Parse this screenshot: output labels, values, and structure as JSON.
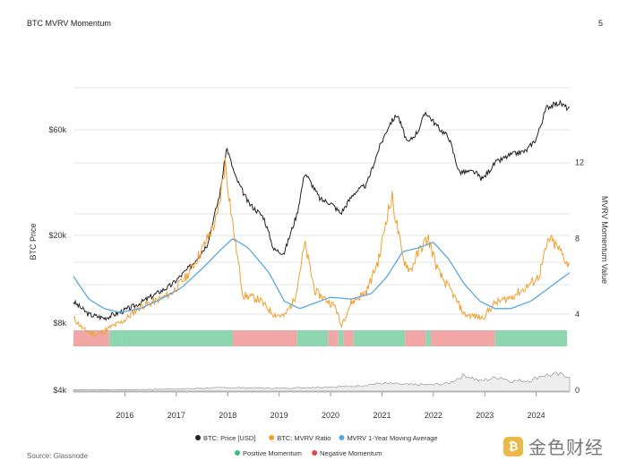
{
  "header": {
    "title": "BTC MVRV Momentum",
    "page_number": "5"
  },
  "footer": {
    "source": "Source: Glassnode"
  },
  "watermark": {
    "text": "金色财经",
    "icon": "gold-coin-logo-icon"
  },
  "colors": {
    "price": "#222222",
    "mvrv": "#f0a030",
    "moving_average": "#5aa8e0",
    "positive": "#8ed6b0",
    "negative": "#f2a7a7",
    "volume": "#999999"
  },
  "chart_data": {
    "type": "line",
    "ylabel_left": "BTC Price",
    "ylabel_right": "MVRV Momentum Value",
    "y_left_scale": "log",
    "x_ticks": [
      "2016",
      "2017",
      "2018",
      "2019",
      "2020",
      "2021",
      "2022",
      "2023",
      "2024"
    ],
    "y_left_ticks": [
      "$4k",
      "$8k",
      "$20k",
      "$60k"
    ],
    "y_right_ticks": [
      "0",
      "4",
      "8",
      "12"
    ],
    "legend": [
      {
        "label": "BTC: Price [USD]",
        "color": "#222222"
      },
      {
        "label": "BTC: MVRV Ratio",
        "color": "#f0a030"
      },
      {
        "label": "MVRV 1-Year Moving Average",
        "color": "#5aa8e0"
      },
      {
        "label": "Positive Momentum",
        "color": "#3bbf7a"
      },
      {
        "label": "Negative Momentum",
        "color": "#e04848"
      }
    ],
    "series": [
      {
        "name": "BTC: Price [USD]",
        "points": [
          [
            2015.0,
            9000
          ],
          [
            2015.3,
            7800
          ],
          [
            2015.6,
            7500
          ],
          [
            2015.9,
            8000
          ],
          [
            2016.2,
            8600
          ],
          [
            2016.6,
            9800
          ],
          [
            2016.9,
            10800
          ],
          [
            2017.3,
            13500
          ],
          [
            2017.6,
            17000
          ],
          [
            2017.85,
            30000
          ],
          [
            2017.98,
            50000
          ],
          [
            2018.15,
            36000
          ],
          [
            2018.4,
            27000
          ],
          [
            2018.7,
            23000
          ],
          [
            2018.9,
            16000
          ],
          [
            2019.1,
            15500
          ],
          [
            2019.35,
            24000
          ],
          [
            2019.5,
            38000
          ],
          [
            2019.8,
            28000
          ],
          [
            2020.0,
            27000
          ],
          [
            2020.2,
            24000
          ],
          [
            2020.45,
            30000
          ],
          [
            2020.7,
            33000
          ],
          [
            2020.95,
            50000
          ],
          [
            2021.15,
            65000
          ],
          [
            2021.3,
            72000
          ],
          [
            2021.5,
            52000
          ],
          [
            2021.7,
            60000
          ],
          [
            2021.85,
            74000
          ],
          [
            2022.1,
            62000
          ],
          [
            2022.3,
            56000
          ],
          [
            2022.5,
            38000
          ],
          [
            2022.8,
            38000
          ],
          [
            2022.95,
            35000
          ],
          [
            2023.2,
            42000
          ],
          [
            2023.5,
            46000
          ],
          [
            2023.8,
            48000
          ],
          [
            2024.0,
            55000
          ],
          [
            2024.2,
            78000
          ],
          [
            2024.45,
            82000
          ],
          [
            2024.65,
            76000
          ]
        ]
      },
      {
        "name": "BTC: MVRV Ratio",
        "points": [
          [
            2015.0,
            3.8
          ],
          [
            2015.2,
            3.2
          ],
          [
            2015.45,
            2.9
          ],
          [
            2015.7,
            3.3
          ],
          [
            2015.95,
            3.6
          ],
          [
            2016.3,
            4.4
          ],
          [
            2016.6,
            4.7
          ],
          [
            2016.9,
            5.1
          ],
          [
            2017.2,
            6.0
          ],
          [
            2017.5,
            7.4
          ],
          [
            2017.8,
            9.1
          ],
          [
            2017.95,
            12.0
          ],
          [
            2018.1,
            8.7
          ],
          [
            2018.3,
            5.0
          ],
          [
            2018.6,
            4.8
          ],
          [
            2018.9,
            4.0
          ],
          [
            2019.1,
            3.9
          ],
          [
            2019.3,
            4.8
          ],
          [
            2019.5,
            7.7
          ],
          [
            2019.7,
            5.2
          ],
          [
            2019.9,
            4.8
          ],
          [
            2020.1,
            4.4
          ],
          [
            2020.2,
            3.4
          ],
          [
            2020.4,
            4.6
          ],
          [
            2020.7,
            5.2
          ],
          [
            2020.95,
            7.0
          ],
          [
            2021.1,
            9.3
          ],
          [
            2021.2,
            10.1
          ],
          [
            2021.4,
            7.0
          ],
          [
            2021.55,
            6.3
          ],
          [
            2021.75,
            7.5
          ],
          [
            2021.9,
            8.0
          ],
          [
            2022.1,
            6.2
          ],
          [
            2022.35,
            5.2
          ],
          [
            2022.6,
            4.0
          ],
          [
            2022.8,
            3.9
          ],
          [
            2022.95,
            3.8
          ],
          [
            2023.2,
            4.6
          ],
          [
            2023.5,
            4.9
          ],
          [
            2023.8,
            5.4
          ],
          [
            2024.05,
            6.0
          ],
          [
            2024.25,
            8.0
          ],
          [
            2024.45,
            7.4
          ],
          [
            2024.65,
            6.5
          ]
        ]
      },
      {
        "name": "MVRV 1-Year Moving Average",
        "points": [
          [
            2015.0,
            6.0
          ],
          [
            2015.3,
            4.8
          ],
          [
            2015.6,
            4.3
          ],
          [
            2015.9,
            4.1
          ],
          [
            2016.3,
            4.3
          ],
          [
            2016.7,
            4.8
          ],
          [
            2017.1,
            5.4
          ],
          [
            2017.5,
            6.4
          ],
          [
            2017.9,
            7.5
          ],
          [
            2018.1,
            8.0
          ],
          [
            2018.4,
            7.5
          ],
          [
            2018.8,
            6.2
          ],
          [
            2019.1,
            4.7
          ],
          [
            2019.4,
            4.3
          ],
          [
            2019.7,
            4.6
          ],
          [
            2020.0,
            4.9
          ],
          [
            2020.4,
            4.8
          ],
          [
            2020.8,
            5.1
          ],
          [
            2021.1,
            6.0
          ],
          [
            2021.4,
            7.3
          ],
          [
            2021.7,
            7.5
          ],
          [
            2022.0,
            7.8
          ],
          [
            2022.3,
            6.9
          ],
          [
            2022.6,
            5.6
          ],
          [
            2022.9,
            4.7
          ],
          [
            2023.2,
            4.3
          ],
          [
            2023.5,
            4.3
          ],
          [
            2023.9,
            4.7
          ],
          [
            2024.3,
            5.5
          ],
          [
            2024.65,
            6.2
          ]
        ]
      },
      {
        "name": "Volume",
        "points": [
          [
            2015.0,
            0.2
          ],
          [
            2016.0,
            0.2
          ],
          [
            2017.0,
            0.3
          ],
          [
            2018.0,
            0.5
          ],
          [
            2019.0,
            0.4
          ],
          [
            2020.0,
            0.6
          ],
          [
            2020.5,
            0.7
          ],
          [
            2021.0,
            1.1
          ],
          [
            2021.5,
            0.9
          ],
          [
            2022.0,
            0.9
          ],
          [
            2022.3,
            1.1
          ],
          [
            2022.55,
            2.1
          ],
          [
            2022.65,
            2.2
          ],
          [
            2022.9,
            1.4
          ],
          [
            2023.3,
            2.0
          ],
          [
            2023.5,
            1.4
          ],
          [
            2023.9,
            1.5
          ],
          [
            2024.1,
            2.2
          ],
          [
            2024.4,
            2.3
          ],
          [
            2024.65,
            2.2
          ]
        ]
      }
    ],
    "momentum_bands": [
      {
        "from": 2015.0,
        "to": 2015.7,
        "state": "negative"
      },
      {
        "from": 2015.7,
        "to": 2015.95,
        "state": "positive"
      },
      {
        "from": 2015.95,
        "to": 2018.1,
        "state": "positive"
      },
      {
        "from": 2018.1,
        "to": 2019.35,
        "state": "negative"
      },
      {
        "from": 2019.35,
        "to": 2019.95,
        "state": "positive"
      },
      {
        "from": 2019.95,
        "to": 2020.15,
        "state": "negative"
      },
      {
        "from": 2020.15,
        "to": 2020.25,
        "state": "positive"
      },
      {
        "from": 2020.25,
        "to": 2020.45,
        "state": "negative"
      },
      {
        "from": 2020.45,
        "to": 2021.45,
        "state": "positive"
      },
      {
        "from": 2021.45,
        "to": 2021.85,
        "state": "negative"
      },
      {
        "from": 2021.85,
        "to": 2021.95,
        "state": "positive"
      },
      {
        "from": 2021.95,
        "to": 2023.2,
        "state": "negative"
      },
      {
        "from": 2023.2,
        "to": 2024.6,
        "state": "positive"
      }
    ]
  }
}
